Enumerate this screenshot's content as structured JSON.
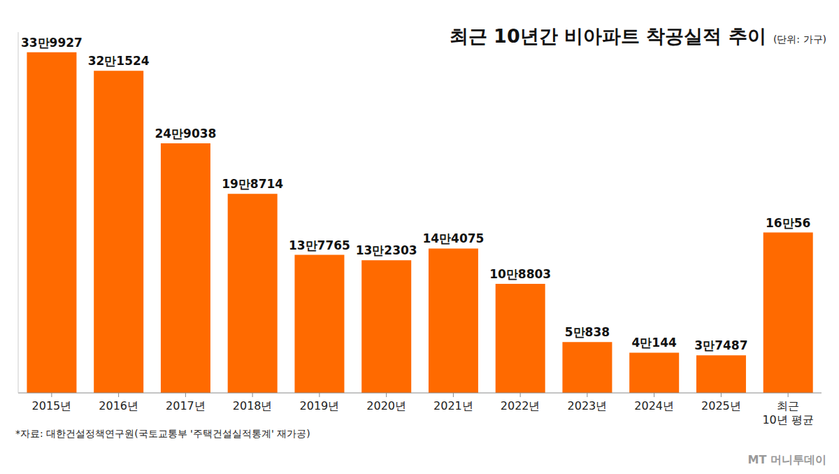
{
  "chart_data": {
    "type": "bar",
    "title": "최근 10년간 비아파트 착공실적 추이",
    "subtitle": "(단위: 가구)",
    "source": "*자료: 대한건설정책연구원(국토교통부 '주택건설실적통계' 재가공)",
    "watermark": "MT 머니투데이",
    "categories": [
      "2015년",
      "2016년",
      "2017년",
      "2018년",
      "2019년",
      "2020년",
      "2021년",
      "2022년",
      "2023년",
      "2024년",
      "2025년",
      "최근 10년 평균"
    ],
    "values": [
      339927,
      321524,
      249038,
      198714,
      137765,
      132303,
      144075,
      108803,
      50838,
      40144,
      37487,
      160056
    ],
    "value_labels": [
      "33만9927",
      "32만1524",
      "24만9038",
      "19만8714",
      "13만7765",
      "13만2303",
      "14만4075",
      "10만8803",
      "5만838",
      "4만144",
      "3만7487",
      "16만56"
    ],
    "color": "#ff6a00",
    "ylim": [
      0,
      360000
    ],
    "yticks": [],
    "grid": false,
    "data_labels": true,
    "tick_labels": "x"
  }
}
